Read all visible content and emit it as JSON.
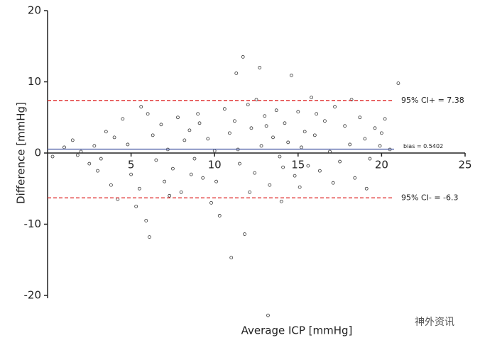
{
  "chart_data": {
    "type": "scatter",
    "xlabel": "Average ICP [mmHg]",
    "ylabel": "Difference [mmHg]",
    "xlim": [
      0,
      25
    ],
    "xticks": [
      5,
      10,
      15,
      20,
      25
    ],
    "ylim": [
      -20,
      20
    ],
    "yticks": [
      -20,
      -10,
      0,
      10,
      20
    ],
    "x": [
      0.3,
      1.0,
      1.5,
      2.0,
      2.5,
      3.0,
      3.5,
      3.8,
      4.2,
      4.5,
      4.8,
      5.0,
      5.3,
      5.6,
      5.9,
      6.1,
      6.3,
      6.5,
      6.8,
      7.0,
      7.2,
      7.5,
      7.8,
      8.0,
      8.2,
      8.5,
      8.8,
      9.0,
      9.3,
      9.6,
      9.8,
      10.0,
      10.3,
      10.6,
      10.9,
      11.0,
      11.2,
      11.3,
      11.5,
      11.7,
      11.8,
      12.0,
      12.2,
      12.4,
      12.5,
      12.7,
      12.8,
      13.0,
      13.2,
      13.3,
      13.5,
      13.7,
      13.9,
      14.0,
      14.2,
      14.4,
      14.6,
      14.8,
      15.0,
      15.2,
      15.4,
      15.6,
      15.8,
      16.0,
      16.3,
      16.6,
      16.9,
      17.2,
      17.5,
      17.8,
      18.1,
      18.4,
      18.7,
      19.0,
      19.3,
      19.6,
      19.9,
      20.2,
      20.5,
      21.0,
      2.8,
      3.2,
      4.0,
      5.5,
      6.0,
      7.3,
      8.6,
      9.1,
      10.1,
      11.4,
      12.1,
      13.1,
      14.1,
      15.1,
      16.1,
      17.1,
      18.2,
      19.1,
      20.0,
      1.8
    ],
    "series": [
      {
        "color": "#333333",
        "values": [
          -0.5,
          0.8,
          1.8,
          0.2,
          -1.5,
          -2.5,
          3.0,
          -4.5,
          -6.5,
          4.8,
          1.2,
          -3.0,
          -7.5,
          6.5,
          -9.5,
          -11.8,
          2.5,
          -1.0,
          4.0,
          -4.0,
          0.5,
          -2.2,
          5.0,
          -5.5,
          1.8,
          3.2,
          -0.8,
          5.5,
          -3.5,
          2.0,
          -7.0,
          0.3,
          -8.8,
          6.2,
          2.8,
          -14.7,
          4.5,
          11.2,
          -1.5,
          13.5,
          -11.4,
          6.8,
          3.5,
          -2.8,
          7.5,
          12.0,
          1.0,
          5.2,
          -22.8,
          -4.5,
          2.2,
          6.0,
          -0.5,
          -6.8,
          4.2,
          1.5,
          10.9,
          -3.2,
          5.8,
          0.8,
          3.0,
          -1.8,
          7.8,
          2.5,
          -2.5,
          4.5,
          0.2,
          6.5,
          -1.2,
          3.8,
          1.2,
          -3.5,
          5.0,
          2.0,
          -0.8,
          3.5,
          1.0,
          4.8,
          0.5,
          9.8,
          1.0,
          -0.8,
          2.2,
          -5.0,
          5.5,
          -6.0,
          -3.0,
          4.2,
          -4.0,
          0.5,
          -5.5,
          3.8,
          -2.0,
          -4.8,
          5.5,
          -4.2,
          7.5,
          -5.0,
          2.8,
          -0.3
        ]
      }
    ],
    "ref_lines": [
      {
        "label": "95% CI+ = 7.38",
        "value": 7.38,
        "color": "#e03030",
        "dashed": true
      },
      {
        "label": "bias = 0.5402",
        "value": 0.5402,
        "color": "#5566aa",
        "dashed": false
      },
      {
        "label": "95% CI- = -6.3",
        "value": -6.3,
        "color": "#e03030",
        "dashed": true
      }
    ],
    "watermark": "神外资讯"
  }
}
